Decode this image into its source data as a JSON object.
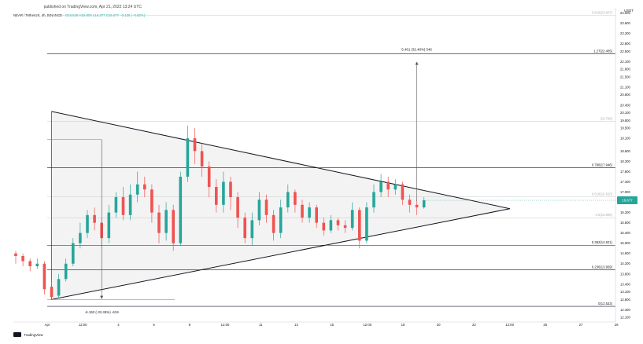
{
  "header": {
    "published": "published on TradingView.com, Apr 21, 2022 13:24 UTC",
    "symbol": "NEAR / TetherUS, 4h, BINANCE",
    "ohlc": "O16.545 H16.800 L16.377 C16.677 −0.136 (−0.82%)"
  },
  "footer": {
    "brand": "TradingView"
  },
  "colors": {
    "up": "#26a69a",
    "down": "#ef5350",
    "pattern_fill": "#f2f2f2",
    "line": "#131722",
    "accent": "#26a69a"
  },
  "chart_data": {
    "type": "candlestick",
    "y_axis": {
      "unit": "USDT",
      "range": [
        11.92,
        24.2
      ],
      "ticks": [
        24.0,
        23.6,
        23.2,
        22.8,
        22.5,
        22.1,
        21.8,
        21.5,
        21.1,
        20.8,
        20.4,
        20.1,
        19.8,
        19.5,
        19.1,
        18.6,
        18.2,
        17.8,
        17.4,
        17.0,
        16.6,
        16.2,
        15.8,
        15.4,
        15.0,
        14.6,
        14.2,
        13.8,
        13.4,
        13.1,
        12.8,
        12.4,
        12.1
      ],
      "tick_labels": [
        "24.000",
        "23.600",
        "23.200",
        "22.800",
        "22.500",
        "22.100",
        "21.800",
        "21.500",
        "21.100",
        "20.800",
        "20.400",
        "20.100",
        "19.800",
        "19.500",
        "19.100",
        "18.600",
        "18.200",
        "17.800",
        "17.400",
        "17.000",
        "16.600",
        "16.200",
        "15.800",
        "15.400",
        "15.000",
        "14.600",
        "14.200",
        "13.800",
        "13.400",
        "13.100",
        "12.800",
        "12.400",
        "12.100"
      ]
    },
    "x_axis": {
      "labels": [
        "Apr",
        "12:00",
        "4",
        "6",
        "8",
        "12:00",
        "11",
        "13",
        "15",
        "12:00",
        "18",
        "20",
        "22",
        "12:00",
        "25",
        "27",
        "29",
        "May"
      ]
    },
    "price_label": {
      "value": 16.677,
      "text": "16.677"
    },
    "fib_levels": [
      {
        "label": "0.618(23.907)",
        "value": 23.907,
        "faded": true
      },
      {
        "label": "1.27(22.405)",
        "value": 22.405,
        "faded": false
      },
      {
        "label": "(19.768)",
        "value": 19.768,
        "faded": true
      },
      {
        "label": "0.786(17.946)",
        "value": 17.946,
        "faded": false
      },
      {
        "label": "0.618(16.820)",
        "value": 16.82,
        "faded": true
      },
      {
        "label": "0.5(15.996)",
        "value": 15.996,
        "faded": true
      },
      {
        "label": "0.382(14.921)",
        "value": 14.921,
        "faded": false
      },
      {
        "label": "0.236(13.959)",
        "value": 13.959,
        "faded": false
      },
      {
        "label": "0(12.533)",
        "value": 12.533,
        "faded": false
      }
    ],
    "triangle": {
      "upper": [
        {
          "x": 5,
          "y": 20.15
        },
        {
          "x": 69,
          "y": 16.35
        }
      ],
      "lower": [
        {
          "x": 5,
          "y": 12.8
        },
        {
          "x": 69,
          "y": 16.35
        }
      ]
    },
    "annotations": [
      {
        "text": "5.461 (32.48%) 546",
        "x": 56,
        "y": 22.6
      },
      {
        "text": "-6.192 (-32.45%) -619",
        "x": 12,
        "y": 12.5
      }
    ],
    "candles": [
      [
        0,
        14.6,
        14.5,
        14.7,
        14.2
      ],
      [
        1,
        14.5,
        14.3,
        14.6,
        14.1
      ],
      [
        2,
        14.3,
        14.1,
        14.4,
        13.9
      ],
      [
        3,
        14.1,
        14.2,
        14.4,
        14.0
      ],
      [
        4,
        14.2,
        13.2,
        14.3,
        13.0
      ],
      [
        5,
        13.3,
        12.9,
        13.5,
        12.8
      ],
      [
        6,
        12.95,
        13.6,
        13.8,
        12.85
      ],
      [
        7,
        13.6,
        14.2,
        14.4,
        13.5
      ],
      [
        8,
        14.2,
        15.0,
        15.2,
        14.1
      ],
      [
        9,
        15.0,
        15.4,
        15.8,
        14.8
      ],
      [
        10,
        15.4,
        16.1,
        16.3,
        15.2
      ],
      [
        11,
        16.1,
        15.8,
        16.4,
        15.5
      ],
      [
        12,
        15.8,
        15.2,
        16.0,
        14.8
      ],
      [
        13,
        15.2,
        16.2,
        16.5,
        15.0
      ],
      [
        14,
        16.2,
        16.8,
        17.0,
        16.0
      ],
      [
        15,
        16.8,
        16.1,
        17.2,
        15.9
      ],
      [
        16,
        16.1,
        16.9,
        17.3,
        15.9
      ],
      [
        17,
        16.9,
        17.3,
        17.8,
        16.6
      ],
      [
        18,
        17.3,
        17.1,
        17.6,
        16.8
      ],
      [
        19,
        17.1,
        16.2,
        17.3,
        15.8
      ],
      [
        20,
        16.2,
        15.4,
        16.5,
        15.0
      ],
      [
        21,
        15.4,
        16.3,
        16.6,
        15.1
      ],
      [
        22,
        16.3,
        15.0,
        16.5,
        14.7
      ],
      [
        23,
        15.0,
        17.6,
        17.8,
        14.9
      ],
      [
        24,
        17.6,
        19.1,
        19.6,
        17.4
      ],
      [
        25,
        19.1,
        18.6,
        19.5,
        18.1
      ],
      [
        26,
        18.6,
        18.0,
        18.9,
        17.6
      ],
      [
        27,
        18.0,
        17.2,
        18.2,
        16.8
      ],
      [
        28,
        17.2,
        16.5,
        17.5,
        16.2
      ],
      [
        29,
        16.5,
        17.4,
        17.8,
        16.2
      ],
      [
        30,
        17.4,
        16.8,
        17.6,
        16.3
      ],
      [
        31,
        16.8,
        16.0,
        17.0,
        15.6
      ],
      [
        32,
        16.0,
        15.2,
        16.2,
        15.0
      ],
      [
        33,
        15.2,
        15.9,
        16.2,
        14.9
      ],
      [
        34,
        15.9,
        16.7,
        17.0,
        15.7
      ],
      [
        35,
        16.7,
        16.1,
        16.9,
        15.8
      ],
      [
        36,
        16.1,
        15.4,
        16.3,
        15.1
      ],
      [
        37,
        15.4,
        16.4,
        16.7,
        15.2
      ],
      [
        38,
        16.4,
        17.0,
        17.3,
        16.2
      ],
      [
        39,
        17.0,
        16.5,
        17.1,
        16.2
      ],
      [
        40,
        16.5,
        16.0,
        16.7,
        15.8
      ],
      [
        41,
        16.0,
        16.4,
        16.6,
        15.8
      ],
      [
        42,
        16.4,
        15.8,
        16.5,
        15.6
      ],
      [
        43,
        15.8,
        15.5,
        16.0,
        15.3
      ],
      [
        44,
        15.5,
        15.9,
        16.1,
        15.4
      ],
      [
        45,
        15.9,
        15.7,
        16.0,
        15.5
      ],
      [
        46,
        15.7,
        15.6,
        15.9,
        15.4
      ],
      [
        47,
        15.6,
        16.3,
        16.6,
        15.5
      ],
      [
        48,
        16.3,
        15.1,
        16.4,
        14.8
      ],
      [
        49,
        15.1,
        16.4,
        16.6,
        15.0
      ],
      [
        50,
        16.4,
        17.0,
        17.3,
        16.2
      ],
      [
        51,
        17.0,
        17.4,
        17.7,
        16.8
      ],
      [
        52,
        17.4,
        17.1,
        17.6,
        16.8
      ],
      [
        53,
        17.1,
        17.3,
        17.5,
        16.9
      ],
      [
        54,
        17.3,
        16.7,
        17.4,
        16.5
      ],
      [
        55,
        16.7,
        16.5,
        16.9,
        16.2
      ],
      [
        56,
        16.5,
        16.4,
        16.7,
        16.1
      ],
      [
        57,
        16.4,
        16.68,
        16.8,
        16.35
      ]
    ]
  }
}
